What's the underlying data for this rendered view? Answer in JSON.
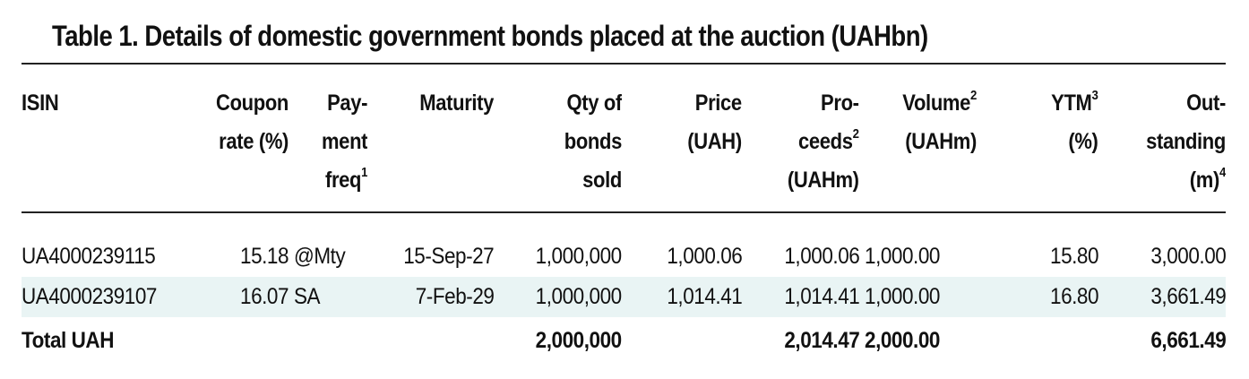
{
  "title": "Table 1. Details of domestic government bonds placed at the auction (UAHbn)",
  "columns": {
    "isin": {
      "l1": "ISIN"
    },
    "coupon": {
      "l1": "Coupon",
      "l2": "rate (%)"
    },
    "payment": {
      "l1": "Pay-",
      "l2": "ment",
      "l3": "freq",
      "note": "1"
    },
    "maturity": {
      "l1": "Maturity"
    },
    "qty": {
      "l1": "Qty of",
      "l2": "bonds",
      "l3": "sold"
    },
    "price": {
      "l1": "Price",
      "l2": "(UAH)"
    },
    "proceeds": {
      "l1": "Pro-",
      "l2": "ceeds",
      "l2_note": "2",
      "l3": "(UAHm)"
    },
    "volume": {
      "l1": "Volume",
      "l1_note": "2",
      "l2": "(UAHm)"
    },
    "ytm": {
      "l1": "YTM",
      "l1_note": "3",
      "l2": "(%)"
    },
    "outstanding": {
      "l1": "Out-",
      "l2": "standing",
      "l3": "(m)",
      "note": "4"
    }
  },
  "rows": [
    {
      "isin": "UA4000239115",
      "coupon": "15.18",
      "payment": "@Mty",
      "maturity": "15-Sep-27",
      "qty": "1,000,000",
      "price": "1,000.06",
      "proceeds": "1,000.06",
      "volume": "1,000.00",
      "ytm": "15.80",
      "outstanding": "3,000.00"
    },
    {
      "isin": "UA4000239107",
      "coupon": "16.07",
      "payment": "SA",
      "maturity": "7-Feb-29",
      "qty": "1,000,000",
      "price": "1,014.41",
      "proceeds": "1,014.41",
      "volume": "1,000.00",
      "ytm": "16.80",
      "outstanding": "3,661.49"
    }
  ],
  "total": {
    "label": "Total UAH",
    "qty": "2,000,000",
    "proceeds": "2,014.47",
    "volume": "2,000.00",
    "outstanding": "6,661.49"
  },
  "colors": {
    "row_shade": "#e9f4f4",
    "rule": "#222222",
    "text": "#111111"
  }
}
